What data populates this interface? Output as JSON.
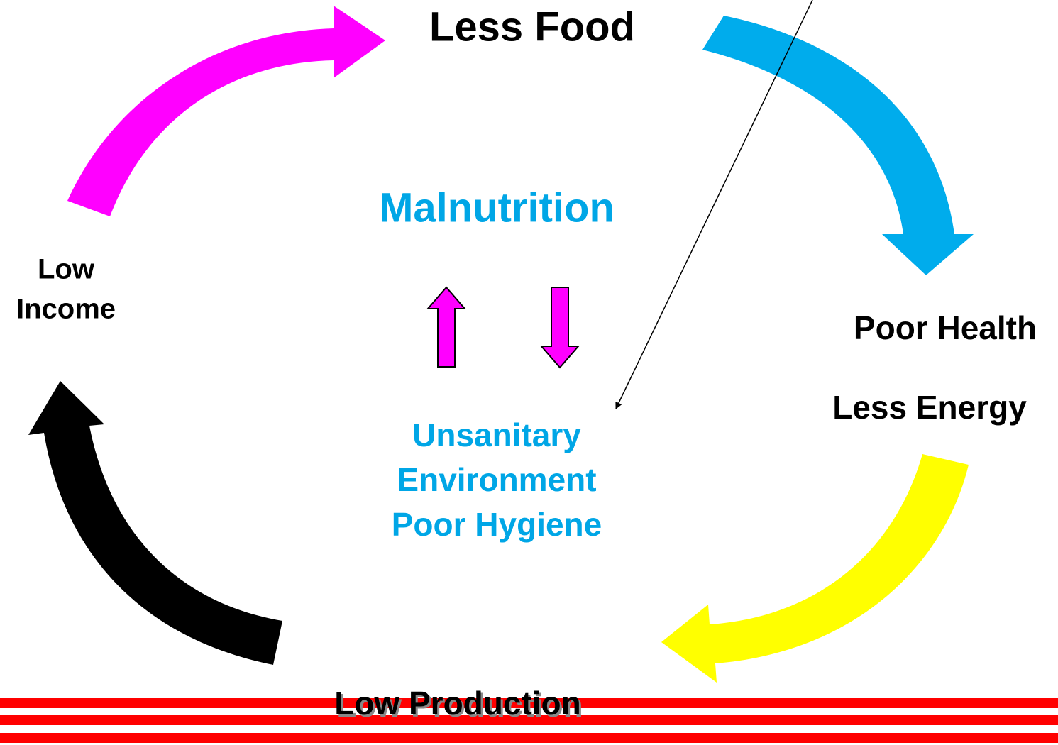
{
  "cycle": {
    "nodes": [
      {
        "lines": [
          "Less Food"
        ]
      },
      {
        "lines": [
          "Poor Health"
        ]
      },
      {
        "lines": [
          "Less Energy"
        ]
      },
      {
        "lines": [
          "Low Production"
        ]
      },
      {
        "lines": [
          "Low",
          "Income"
        ]
      }
    ]
  },
  "center": {
    "title": "Malnutrition",
    "lines": [
      "Unsanitary",
      "Environment",
      "Poor Hygiene"
    ]
  }
}
